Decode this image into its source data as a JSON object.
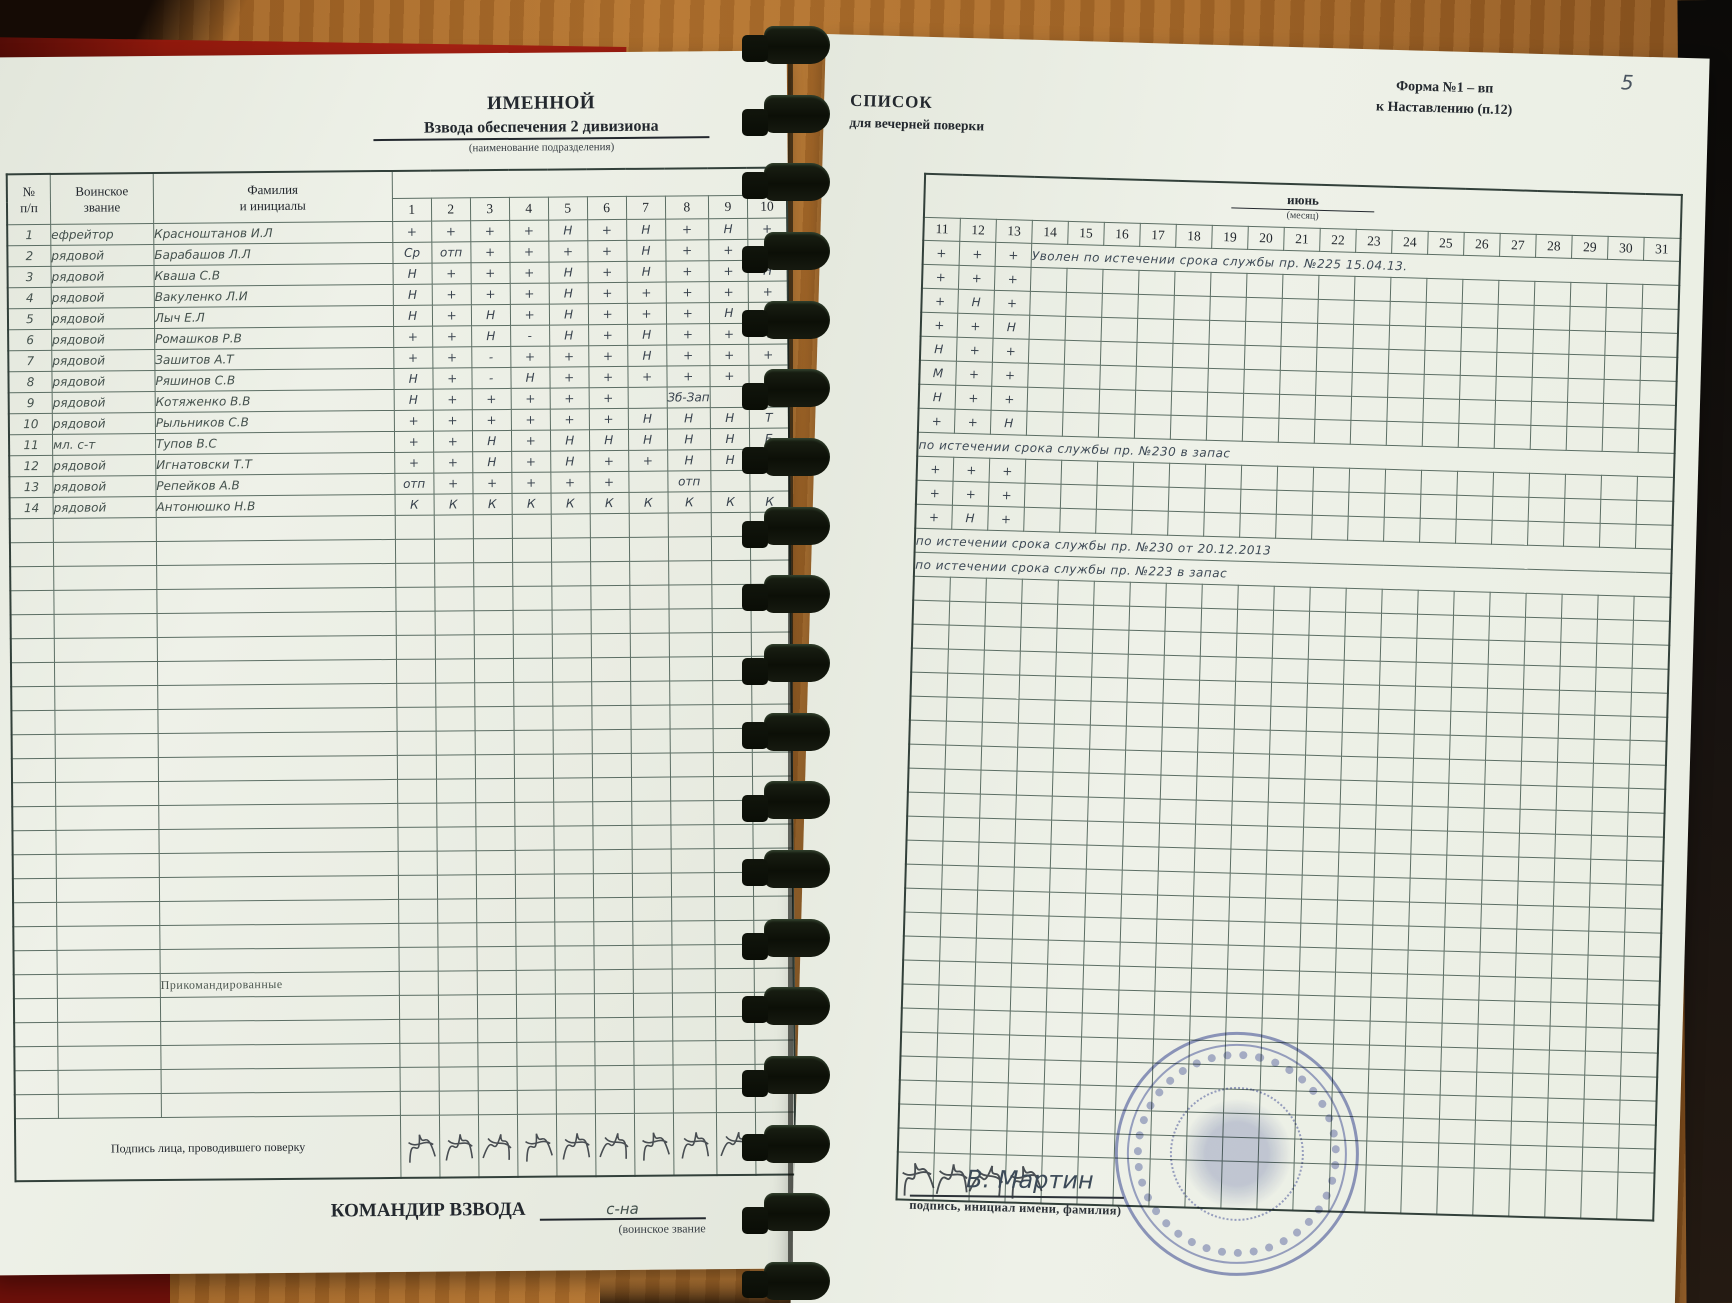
{
  "photo": {
    "desk_color": "#b5742f",
    "folder_color": "#8f190d",
    "binding": {
      "loop_count": 19,
      "color": "#0c0f07"
    }
  },
  "left_page": {
    "title1": "ИМЕННОЙ",
    "title2": "Взвода обеспечения 2 дивизиона",
    "title2_sub": "(наименование подразделения)",
    "table": {
      "col_headers": {
        "num": "№\nп/п",
        "rank": "Воинское\nзвание",
        "name": "Фамилия\nи инициалы"
      },
      "day_numbers": [
        "1",
        "2",
        "3",
        "4",
        "5",
        "6",
        "7",
        "8",
        "9",
        "10"
      ],
      "rows": [
        {
          "n": "1",
          "rank": "ефрейтор",
          "name": "Красноштанов И.Л",
          "marks": [
            "+",
            "+",
            "+",
            "+",
            "Н",
            "+",
            "Н",
            "+",
            "Н",
            "+"
          ]
        },
        {
          "n": "2",
          "rank": "рядовой",
          "name": "Барабашов Л.Л",
          "marks": [
            "Ср",
            "отп",
            "+",
            "+",
            "+",
            "+",
            "Н",
            "+",
            "+",
            "+"
          ]
        },
        {
          "n": "3",
          "rank": "рядовой",
          "name": "Кваша С.В",
          "marks": [
            "Н",
            "+",
            "+",
            "+",
            "Н",
            "+",
            "Н",
            "+",
            "+",
            "Н"
          ]
        },
        {
          "n": "4",
          "rank": "рядовой",
          "name": "Вакуленко Л.И",
          "marks": [
            "Н",
            "+",
            "+",
            "+",
            "Н",
            "+",
            "+",
            "+",
            "+",
            "+"
          ]
        },
        {
          "n": "5",
          "rank": "рядовой",
          "name": "Лыч Е.Л",
          "marks": [
            "Н",
            "+",
            "Н",
            "+",
            "Н",
            "+",
            "+",
            "+",
            "Н",
            "Б"
          ]
        },
        {
          "n": "6",
          "rank": "рядовой",
          "name": "Ромашков Р.В",
          "marks": [
            "+",
            "+",
            "Н",
            "-",
            "Н",
            "+",
            "Н",
            "+",
            "+",
            "+"
          ]
        },
        {
          "n": "7",
          "rank": "рядовой",
          "name": "Зашитов А.Т",
          "marks": [
            "+",
            "+",
            "-",
            "+",
            "+",
            "+",
            "Н",
            "+",
            "+",
            "+"
          ]
        },
        {
          "n": "8",
          "rank": "рядовой",
          "name": "Ряшинов С.В",
          "marks": [
            "Н",
            "+",
            "-",
            "Н",
            "+",
            "+",
            "+",
            "+",
            "+",
            "+"
          ]
        },
        {
          "n": "9",
          "rank": "рядовой",
          "name": "Котяженко В.В",
          "marks": [
            "Н",
            "+",
            "+",
            "+",
            "+",
            "+",
            "",
            "Зб-Зап",
            "",
            ""
          ]
        },
        {
          "n": "10",
          "rank": "рядовой",
          "name": "Рыльников С.В",
          "marks": [
            "+",
            "+",
            "+",
            "+",
            "+",
            "+",
            "Н",
            "Н",
            "Н",
            "Т"
          ]
        },
        {
          "n": "11",
          "rank": "мл. с-т",
          "name": "Тупов В.С",
          "marks": [
            "+",
            "+",
            "Н",
            "+",
            "Н",
            "Н",
            "Н",
            "Н",
            "Н",
            "Б"
          ]
        },
        {
          "n": "12",
          "rank": "рядовой",
          "name": "Игнатовски Т.Т",
          "marks": [
            "+",
            "+",
            "Н",
            "+",
            "Н",
            "+",
            "+",
            "Н",
            "Н",
            "Т"
          ]
        },
        {
          "n": "13",
          "rank": "рядовой",
          "name": "Репейков А.В",
          "marks": [
            "отп",
            "+",
            "+",
            "+",
            "+",
            "+",
            "",
            "отп",
            "",
            ""
          ]
        },
        {
          "n": "14",
          "rank": "рядовой",
          "name": "Антонюшко Н.В",
          "marks": [
            "К",
            "К",
            "К",
            "К",
            "К",
            "К",
            "К",
            "К",
            "К",
            "К"
          ]
        }
      ],
      "empty_rows_after": 19,
      "attached_label": "Прикомандированные",
      "empty_rows_after_attached": 5,
      "checker_row_label": "Подпись лица,\nпроводившего поверку"
    },
    "footer": {
      "commander_label": "КОМАНДИР ВЗВОДА",
      "commander_value": "с-на",
      "commander_sub": "(воинское звание"
    }
  },
  "right_page": {
    "page_number": "5",
    "form_line1": "Форма №1 – вп",
    "form_line2": "к Наставлению (п.12)",
    "title1": "СПИСОК",
    "title2": "для вечерней поверки",
    "table": {
      "month": "июнь",
      "month_sub": "(месяц)",
      "day_numbers": [
        "11",
        "12",
        "13",
        "14",
        "15",
        "16",
        "17",
        "18",
        "19",
        "20",
        "21",
        "22",
        "23",
        "24",
        "25",
        "26",
        "27",
        "28",
        "29",
        "30",
        "31"
      ],
      "rows": [
        {
          "cells": [
            "+",
            "+",
            "+"
          ],
          "note": "Уволен по истечении срока службы пр. №225 15.04.13."
        },
        {
          "cells": [
            "+",
            "+",
            "+"
          ]
        },
        {
          "cells": [
            "+",
            "Н",
            "+"
          ]
        },
        {
          "cells": [
            "+",
            "+",
            "Н"
          ]
        },
        {
          "cells": [
            "Н",
            "+",
            "+"
          ]
        },
        {
          "cells": [
            "М",
            "+",
            "+"
          ]
        },
        {
          "cells": [
            "Н",
            "+",
            "+"
          ]
        },
        {
          "cells": [
            "+",
            "+",
            "Н"
          ]
        },
        {
          "cells": [],
          "note": "по истечении срока службы пр. №230 в запас"
        },
        {
          "cells": [
            "+",
            "+",
            "+"
          ]
        },
        {
          "cells": [
            "+",
            "+",
            "+"
          ]
        },
        {
          "cells": [
            "+",
            "Н",
            "+"
          ]
        },
        {
          "cells": [],
          "note": "по истечении срока службы пр. №230 от 20.12.2013"
        },
        {
          "cells": [],
          "note": "по истечении срока службы пр. №223 в запас"
        }
      ],
      "total_rows": 39,
      "scribble_cells_last_row": 4
    },
    "footer": {
      "signature": "В. Мартин",
      "signature_sub": "подпись, инициал имени, фамилия)"
    },
    "stamp": {
      "name": "round-blue-stamp",
      "color": "#3e4ca0"
    }
  }
}
